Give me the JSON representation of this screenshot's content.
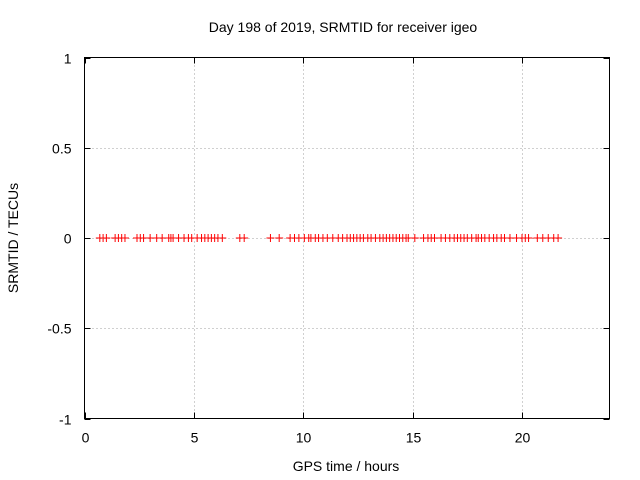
{
  "chart_data": {
    "type": "scatter",
    "title": "Day 198 of 2019, SRMTID for receiver igeo",
    "xlabel": "GPS time / hours",
    "ylabel": "SRMTID / TECUs",
    "xlim": [
      0,
      24
    ],
    "ylim": [
      -1,
      1
    ],
    "grid": true,
    "marker": "+",
    "x_ticks": [
      0,
      5,
      10,
      15,
      20
    ],
    "x_tick_labels": [
      "0",
      "5",
      "10",
      "15",
      "20"
    ],
    "y_ticks": [
      -1,
      -0.5,
      0,
      0.5,
      1
    ],
    "y_tick_labels": [
      "-1",
      "-0.5",
      "0",
      "0.5",
      "1"
    ],
    "series": [
      {
        "name": "SRMTID",
        "color": "#ff0000",
        "x": [
          0.7,
          0.85,
          1.0,
          1.4,
          1.55,
          1.7,
          1.85,
          2.4,
          2.55,
          2.7,
          3.0,
          3.3,
          3.55,
          3.85,
          3.95,
          4.05,
          4.3,
          4.55,
          4.75,
          4.9,
          5.15,
          5.35,
          5.5,
          5.65,
          5.8,
          5.95,
          6.1,
          6.3,
          7.1,
          7.3,
          8.5,
          8.9,
          9.4,
          9.6,
          9.8,
          10.05,
          10.25,
          10.35,
          10.55,
          10.7,
          10.9,
          11.1,
          11.35,
          11.6,
          11.8,
          12.0,
          12.15,
          12.3,
          12.45,
          12.6,
          12.75,
          12.95,
          13.1,
          13.3,
          13.5,
          13.65,
          13.8,
          13.95,
          14.1,
          14.25,
          14.4,
          14.55,
          14.7,
          14.8,
          15.1,
          15.5,
          15.7,
          15.85,
          16.0,
          16.3,
          16.5,
          16.7,
          16.9,
          17.05,
          17.2,
          17.35,
          17.5,
          17.7,
          17.9,
          18.0,
          18.15,
          18.3,
          18.5,
          18.7,
          18.85,
          19.05,
          19.2,
          19.45,
          19.75,
          20.0,
          20.15,
          20.3,
          20.7,
          20.95,
          21.2,
          21.45,
          21.65
        ],
        "y": [
          0,
          0,
          0,
          0,
          0,
          0,
          0,
          0,
          0,
          0,
          0,
          0,
          0,
          0,
          0,
          0,
          0,
          0,
          0,
          0,
          0,
          0,
          0,
          0,
          0,
          0,
          0,
          0,
          0,
          0,
          0,
          0,
          0,
          0,
          0,
          0,
          0,
          0,
          0,
          0,
          0,
          0,
          0,
          0,
          0,
          0,
          0,
          0,
          0,
          0,
          0,
          0,
          0,
          0,
          0,
          0,
          0,
          0,
          0,
          0,
          0,
          0,
          0,
          0,
          0,
          0,
          0,
          0,
          0,
          0,
          0,
          0,
          0,
          0,
          0,
          0,
          0,
          0,
          0,
          0,
          0,
          0,
          0,
          0,
          0,
          0,
          0,
          0,
          0,
          0,
          0,
          0,
          0,
          0,
          0,
          0,
          0
        ]
      }
    ]
  }
}
